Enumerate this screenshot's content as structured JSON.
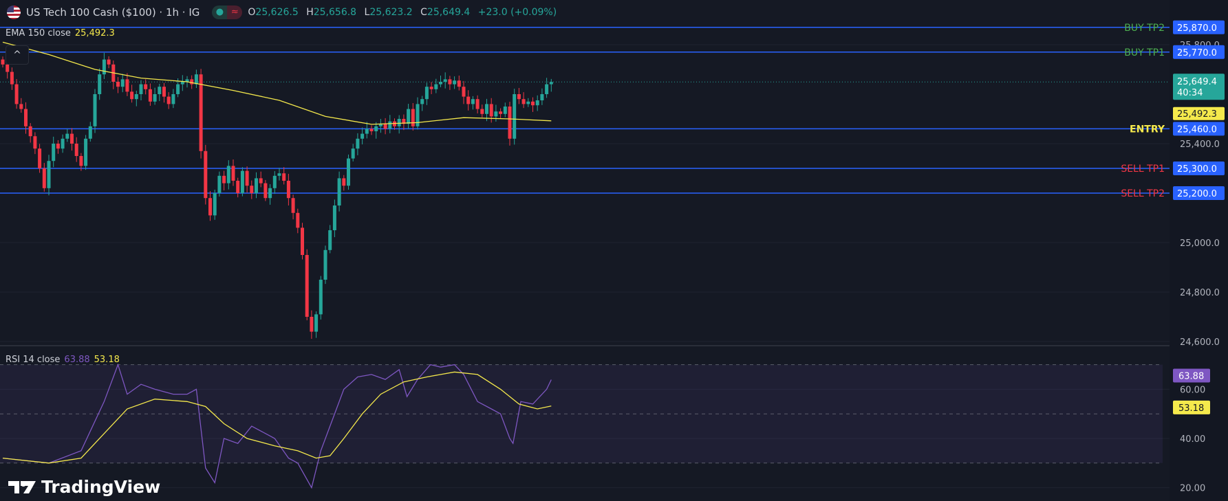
{
  "header": {
    "title": "US Tech 100 Cash ($100) · 1h · IG",
    "ohlc": [
      {
        "k": "O",
        "v": "25,626.5"
      },
      {
        "k": "H",
        "v": "25,656.8"
      },
      {
        "k": "L",
        "v": "25,623.2"
      },
      {
        "k": "C",
        "v": "25,649.4"
      }
    ],
    "change": "+23.0 (+0.09%)",
    "status_icons": [
      "market-open-dot-icon",
      "replay-wave-icon"
    ]
  },
  "ema_legend": {
    "label": "EMA 150 close",
    "value": "25,492.3"
  },
  "rsi_legend": {
    "label": "RSI 14 close",
    "rsi_value": "63.88",
    "ma_value": "53.18"
  },
  "collapse_label": "^",
  "brand": "TradingView",
  "colors": {
    "up": "#26a69a",
    "down": "#f23645",
    "ema": "#f5e94c",
    "rsi": "#7e57c2",
    "level_line": "#2962ff",
    "buy": "#4caf50",
    "sell": "#f23645",
    "entry": "#f5e94c"
  },
  "chart_data": {
    "type": "candlestick",
    "price_axis": {
      "ticks": [
        25800,
        25400,
        25000,
        24800,
        24600
      ],
      "tick_labels": [
        "25,800.0",
        "25,400.0",
        "25,000.0",
        "24,800.0",
        "24,600.0"
      ],
      "range": [
        24590,
        25900
      ]
    },
    "closes": [
      25720,
      25690,
      25640,
      25560,
      25540,
      25470,
      25430,
      25380,
      25300,
      25220,
      25330,
      25400,
      25380,
      25420,
      25440,
      25400,
      25350,
      25310,
      25420,
      25470,
      25600,
      25680,
      25740,
      25720,
      25650,
      25630,
      25660,
      25610,
      25580,
      25600,
      25640,
      25620,
      25570,
      25600,
      25630,
      25590,
      25560,
      25600,
      25640,
      25650,
      25660,
      25640,
      25680,
      25370,
      25180,
      25110,
      25200,
      25270,
      25240,
      25310,
      25250,
      25200,
      25290,
      25230,
      25200,
      25260,
      25240,
      25180,
      25220,
      25270,
      25280,
      25250,
      25180,
      25120,
      25060,
      24950,
      24700,
      24640,
      24710,
      24850,
      24970,
      25050,
      25150,
      25260,
      25230,
      25340,
      25380,
      25420,
      25440,
      25460,
      25450,
      25470,
      25480,
      25460,
      25490,
      25470,
      25500,
      25480,
      25540,
      25470,
      25560,
      25580,
      25630,
      25620,
      25640,
      25650,
      25660,
      25640,
      25655,
      25630,
      25590,
      25560,
      25580,
      25540,
      25520,
      25560,
      25510,
      25530,
      25520,
      25550,
      25420,
      25600,
      25580,
      25560,
      25570,
      25555,
      25575,
      25600,
      25640,
      25649.4
    ],
    "ema150": [
      [
        0,
        25810
      ],
      [
        10,
        25760
      ],
      [
        20,
        25700
      ],
      [
        30,
        25665
      ],
      [
        40,
        25650
      ],
      [
        50,
        25615
      ],
      [
        60,
        25575
      ],
      [
        70,
        25510
      ],
      [
        80,
        25478
      ],
      [
        90,
        25485
      ],
      [
        100,
        25505
      ],
      [
        110,
        25500
      ],
      [
        119,
        25492.3
      ]
    ],
    "last_price": {
      "value": "25,649.4",
      "countdown": "40:34"
    },
    "ema_last_label": "25,492.3",
    "levels": [
      {
        "name": "BUY TP2",
        "price": 25870,
        "label": "25,870.0",
        "kind": "buy"
      },
      {
        "name": "BUY TP1",
        "price": 25770,
        "label": "25,770.0",
        "kind": "buy"
      },
      {
        "name": "ENTRY",
        "price": 25460,
        "label": "25,460.0",
        "kind": "entry"
      },
      {
        "name": "SELL TP1",
        "price": 25300,
        "label": "25,300.0",
        "kind": "sell"
      },
      {
        "name": "SELL TP2",
        "price": 25200,
        "label": "25,200.0",
        "kind": "sell"
      }
    ],
    "rsi": {
      "axis_ticks": [
        60,
        40,
        20
      ],
      "axis_labels": [
        "60.00",
        "40.00",
        "20.00"
      ],
      "band": [
        30,
        70
      ],
      "mid": 50,
      "rsi_points": [
        [
          0,
          32
        ],
        [
          10,
          30
        ],
        [
          17,
          35
        ],
        [
          22,
          55
        ],
        [
          25,
          70
        ],
        [
          27,
          58
        ],
        [
          30,
          62
        ],
        [
          33,
          60
        ],
        [
          37,
          58
        ],
        [
          40,
          58
        ],
        [
          42,
          60
        ],
        [
          44,
          28
        ],
        [
          46,
          22
        ],
        [
          48,
          40
        ],
        [
          51,
          38
        ],
        [
          54,
          45
        ],
        [
          57,
          42
        ],
        [
          59,
          40
        ],
        [
          62,
          32
        ],
        [
          64,
          30
        ],
        [
          67,
          20
        ],
        [
          69,
          35
        ],
        [
          71,
          45
        ],
        [
          74,
          60
        ],
        [
          77,
          65
        ],
        [
          80,
          66
        ],
        [
          83,
          64
        ],
        [
          86,
          68
        ],
        [
          87.7,
          57
        ],
        [
          90,
          64
        ],
        [
          92.8,
          70
        ],
        [
          95,
          69
        ],
        [
          98,
          70
        ],
        [
          100,
          66
        ],
        [
          103,
          55
        ],
        [
          106,
          52
        ],
        [
          108,
          50
        ],
        [
          110,
          40
        ],
        [
          110.7,
          38
        ],
        [
          112.4,
          55
        ],
        [
          115,
          54
        ],
        [
          118,
          60
        ],
        [
          119,
          63.88
        ]
      ],
      "ma_points": [
        [
          0,
          32
        ],
        [
          10,
          30
        ],
        [
          17,
          32
        ],
        [
          22,
          42
        ],
        [
          27,
          52
        ],
        [
          33,
          56
        ],
        [
          40,
          55
        ],
        [
          44,
          53
        ],
        [
          48,
          46
        ],
        [
          53,
          40
        ],
        [
          59,
          37
        ],
        [
          64,
          35
        ],
        [
          68,
          32
        ],
        [
          71,
          33
        ],
        [
          74,
          40
        ],
        [
          78,
          50
        ],
        [
          82,
          58
        ],
        [
          87,
          63
        ],
        [
          92,
          65
        ],
        [
          98,
          67
        ],
        [
          103,
          66
        ],
        [
          108,
          60
        ],
        [
          112,
          54
        ],
        [
          116,
          52
        ],
        [
          119,
          53.18
        ]
      ]
    }
  }
}
